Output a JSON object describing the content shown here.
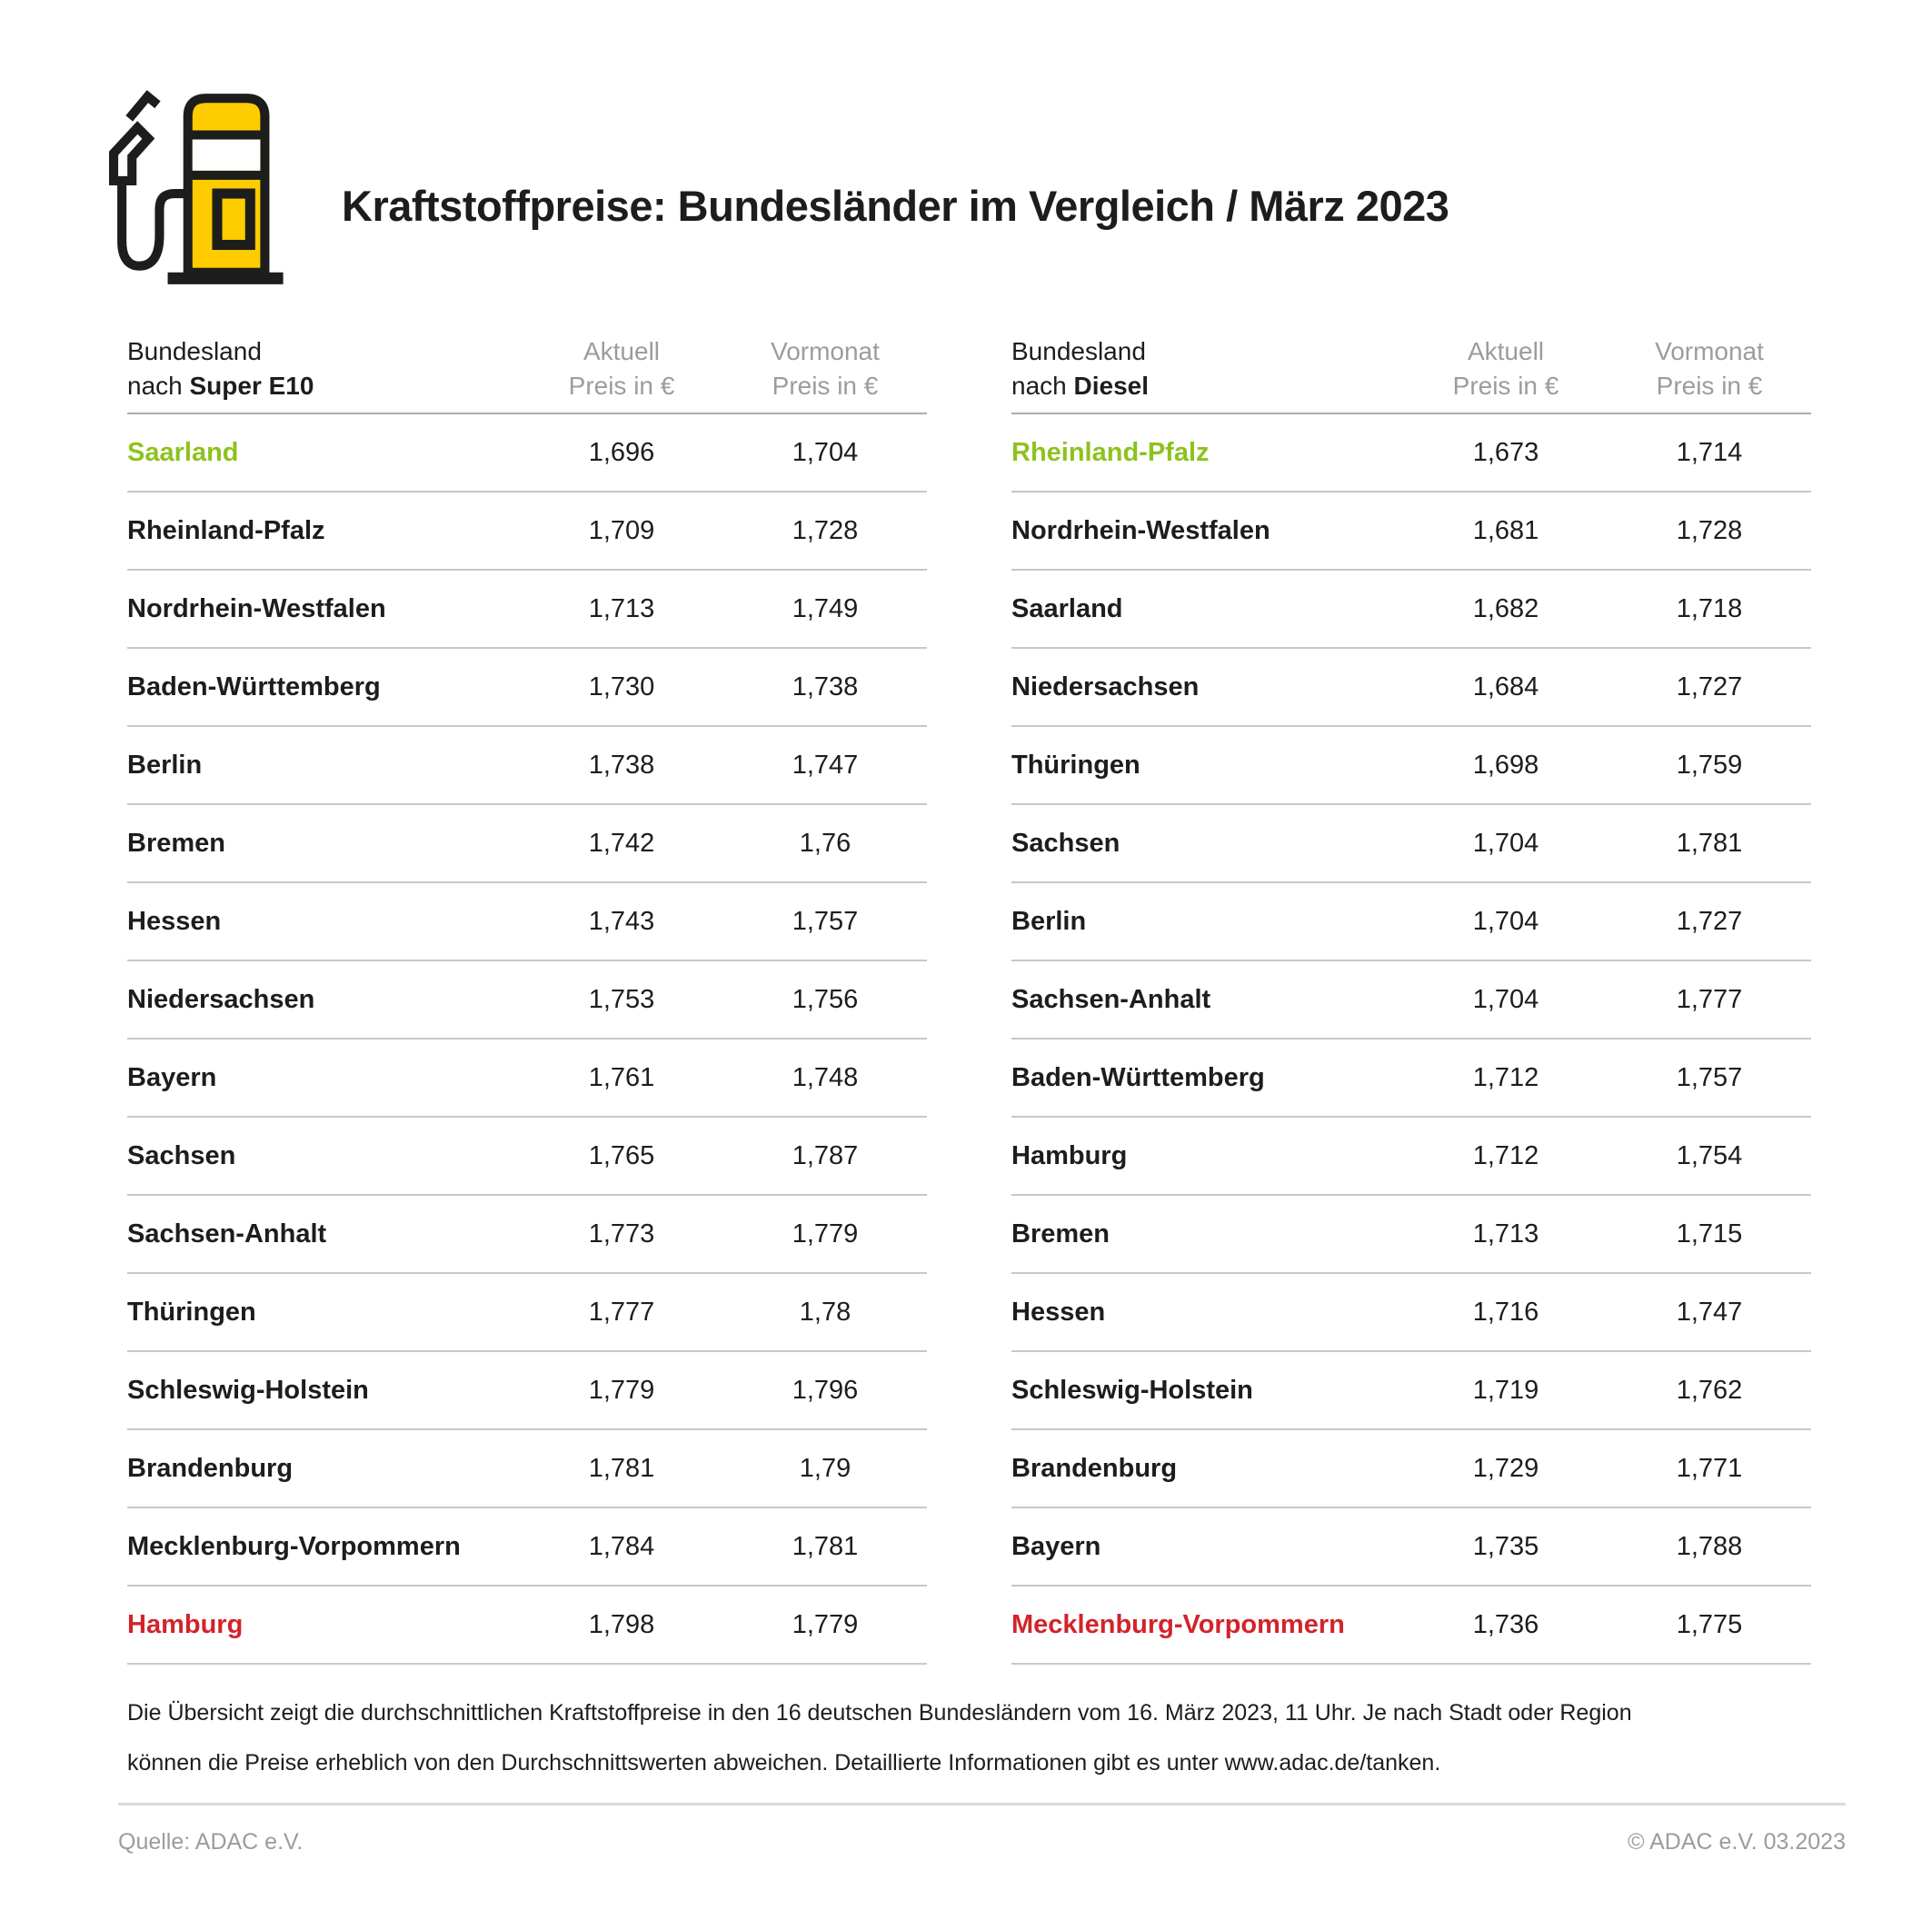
{
  "header": {
    "title": "Kraftstoffpreise: Bundesländer im Vergleich / März 2023",
    "icon": "fuel-pump-icon"
  },
  "colors": {
    "dark": "#1D1D1B",
    "gray": "#9C9C9C",
    "divider": "#C8C8C8",
    "green": "#8DC21E",
    "red": "#D2232A",
    "yellow": "#FFCC00"
  },
  "tables": [
    {
      "id": "super-e10",
      "head": {
        "col1_line1": "Bundesland",
        "col1_line2_normal": "nach ",
        "col1_line2_bold": "Super E10",
        "col2_line1": "Aktuell",
        "col2_line2": "Preis in €",
        "col3_line1": "Vormonat",
        "col3_line2": "Preis in €"
      },
      "rows": [
        {
          "state": "Saarland",
          "current": "1,696",
          "previous": "1,704",
          "highlight": "green"
        },
        {
          "state": "Rheinland-Pfalz",
          "current": "1,709",
          "previous": "1,728",
          "highlight": null
        },
        {
          "state": "Nordrhein-Westfalen",
          "current": "1,713",
          "previous": "1,749",
          "highlight": null
        },
        {
          "state": "Baden-Württemberg",
          "current": "1,730",
          "previous": "1,738",
          "highlight": null
        },
        {
          "state": "Berlin",
          "current": "1,738",
          "previous": "1,747",
          "highlight": null
        },
        {
          "state": "Bremen",
          "current": "1,742",
          "previous": "1,76",
          "highlight": null
        },
        {
          "state": "Hessen",
          "current": "1,743",
          "previous": "1,757",
          "highlight": null
        },
        {
          "state": "Niedersachsen",
          "current": "1,753",
          "previous": "1,756",
          "highlight": null
        },
        {
          "state": "Bayern",
          "current": "1,761",
          "previous": "1,748",
          "highlight": null
        },
        {
          "state": "Sachsen",
          "current": "1,765",
          "previous": "1,787",
          "highlight": null
        },
        {
          "state": "Sachsen-Anhalt",
          "current": "1,773",
          "previous": "1,779",
          "highlight": null
        },
        {
          "state": "Thüringen",
          "current": "1,777",
          "previous": "1,78",
          "highlight": null
        },
        {
          "state": "Schleswig-Holstein",
          "current": "1,779",
          "previous": "1,796",
          "highlight": null
        },
        {
          "state": "Brandenburg",
          "current": "1,781",
          "previous": "1,79",
          "highlight": null
        },
        {
          "state": "Mecklenburg-Vorpommern",
          "current": "1,784",
          "previous": "1,781",
          "highlight": null
        },
        {
          "state": "Hamburg",
          "current": "1,798",
          "previous": "1,779",
          "highlight": "red"
        }
      ]
    },
    {
      "id": "diesel",
      "head": {
        "col1_line1": "Bundesland",
        "col1_line2_normal": "nach ",
        "col1_line2_bold": "Diesel",
        "col2_line1": "Aktuell",
        "col2_line2": "Preis in €",
        "col3_line1": "Vormonat",
        "col3_line2": "Preis in €"
      },
      "rows": [
        {
          "state": "Rheinland-Pfalz",
          "current": "1,673",
          "previous": "1,714",
          "highlight": "green"
        },
        {
          "state": "Nordrhein-Westfalen",
          "current": "1,681",
          "previous": "1,728",
          "highlight": null
        },
        {
          "state": "Saarland",
          "current": "1,682",
          "previous": "1,718",
          "highlight": null
        },
        {
          "state": "Niedersachsen",
          "current": "1,684",
          "previous": "1,727",
          "highlight": null
        },
        {
          "state": "Thüringen",
          "current": "1,698",
          "previous": "1,759",
          "highlight": null
        },
        {
          "state": "Sachsen",
          "current": "1,704",
          "previous": "1,781",
          "highlight": null
        },
        {
          "state": "Berlin",
          "current": "1,704",
          "previous": "1,727",
          "highlight": null
        },
        {
          "state": "Sachsen-Anhalt",
          "current": "1,704",
          "previous": "1,777",
          "highlight": null
        },
        {
          "state": "Baden-Württemberg",
          "current": "1,712",
          "previous": "1,757",
          "highlight": null
        },
        {
          "state": "Hamburg",
          "current": "1,712",
          "previous": "1,754",
          "highlight": null
        },
        {
          "state": "Bremen",
          "current": "1,713",
          "previous": "1,715",
          "highlight": null
        },
        {
          "state": "Hessen",
          "current": "1,716",
          "previous": "1,747",
          "highlight": null
        },
        {
          "state": "Schleswig-Holstein",
          "current": "1,719",
          "previous": "1,762",
          "highlight": null
        },
        {
          "state": "Brandenburg",
          "current": "1,729",
          "previous": "1,771",
          "highlight": null
        },
        {
          "state": "Bayern",
          "current": "1,735",
          "previous": "1,788",
          "highlight": null
        },
        {
          "state": "Mecklenburg-Vorpommern",
          "current": "1,736",
          "previous": "1,775",
          "highlight": "red"
        }
      ]
    }
  ],
  "footnote": "Die Übersicht zeigt die durchschnittlichen Kraftstoffpreise in den 16 deutschen Bundesländern vom 16. März 2023, 11 Uhr. Je nach Stadt oder Region können die Preise erheblich von den Durchschnittswerten abweichen. Detaillierte Informationen gibt es unter www.adac.de/tanken.",
  "source": {
    "left": "Quelle: ADAC e.V.",
    "right": "© ADAC e.V. 03.2023"
  }
}
